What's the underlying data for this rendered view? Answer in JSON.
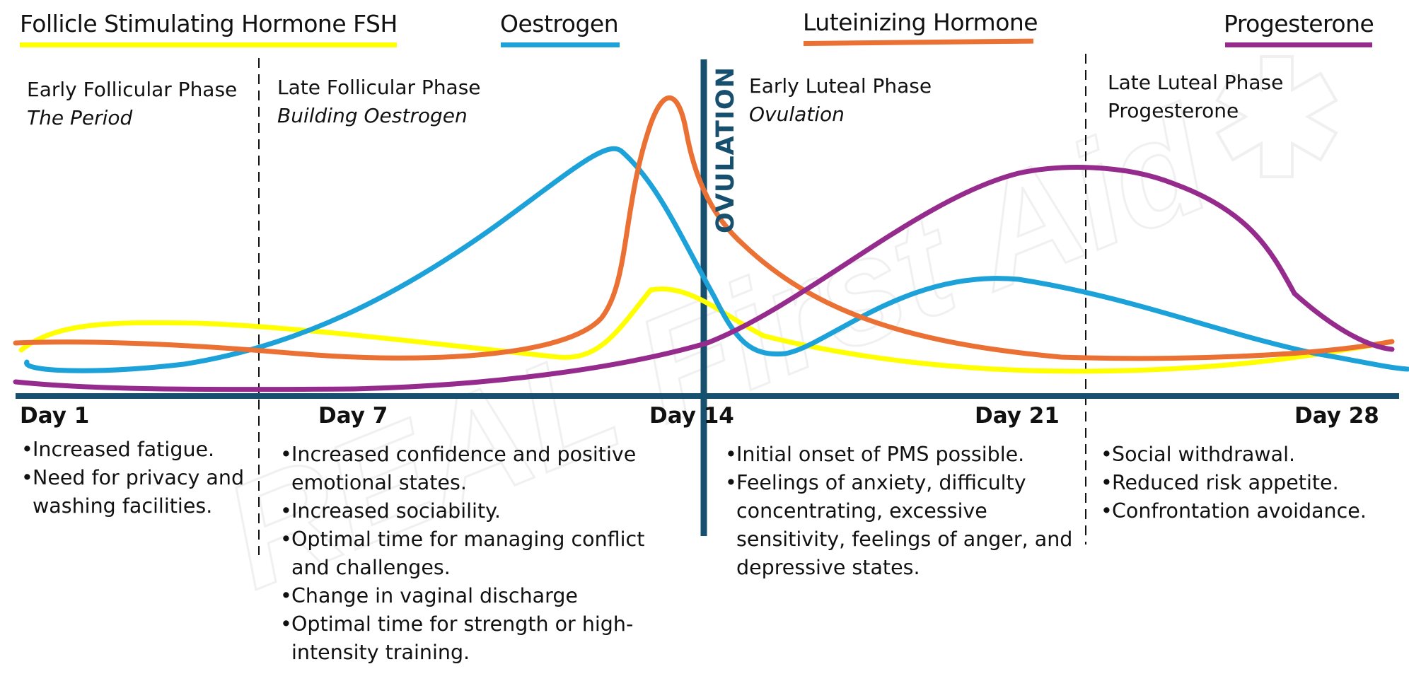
{
  "legend": [
    {
      "label": "Follicle Stimulating Hormone FSH",
      "color": "#ffff00"
    },
    {
      "label": "Oestrogen",
      "color": "#1ca2d8"
    },
    {
      "label": "Luteinizing Hormone",
      "color": "#eb7034"
    },
    {
      "label": "Progesterone",
      "color": "#962b8e"
    }
  ],
  "phases": [
    {
      "title": "Early Follicular Phase",
      "subtitle": "The Period"
    },
    {
      "title": "Late Follicular Phase",
      "subtitle": "Building Oestrogen"
    },
    {
      "title": "Early Luteal Phase",
      "subtitle": "Ovulation"
    },
    {
      "title": "Late Luteal Phase",
      "subtitle": "Progesterone"
    }
  ],
  "ovulation_label": "OVULATION",
  "days": [
    "Day 1",
    "Day 7",
    "Day 14",
    "Day 21",
    "Day 28"
  ],
  "notes": [
    [
      "Increased fatigue.",
      "Need for privacy and washing facilities."
    ],
    [
      "Increased confidence and positive emotional states.",
      "Increased sociability.",
      "Optimal time for managing conflict and challenges.",
      "Change in vaginal discharge",
      "Optimal time for strength or high-intensity training."
    ],
    [
      "Initial onset of PMS possible.",
      "Feelings of anxiety, difficulty concentrating, excessive sensitivity, feelings of anger, and depressive states."
    ],
    [
      "Social withdrawal.",
      "Reduced risk appetite.",
      "Confrontation avoidance."
    ]
  ],
  "watermark": "REAL First Aid",
  "colors": {
    "axis": "#16506e",
    "ovulation_line": "#16506e",
    "divider": "#111111"
  }
}
